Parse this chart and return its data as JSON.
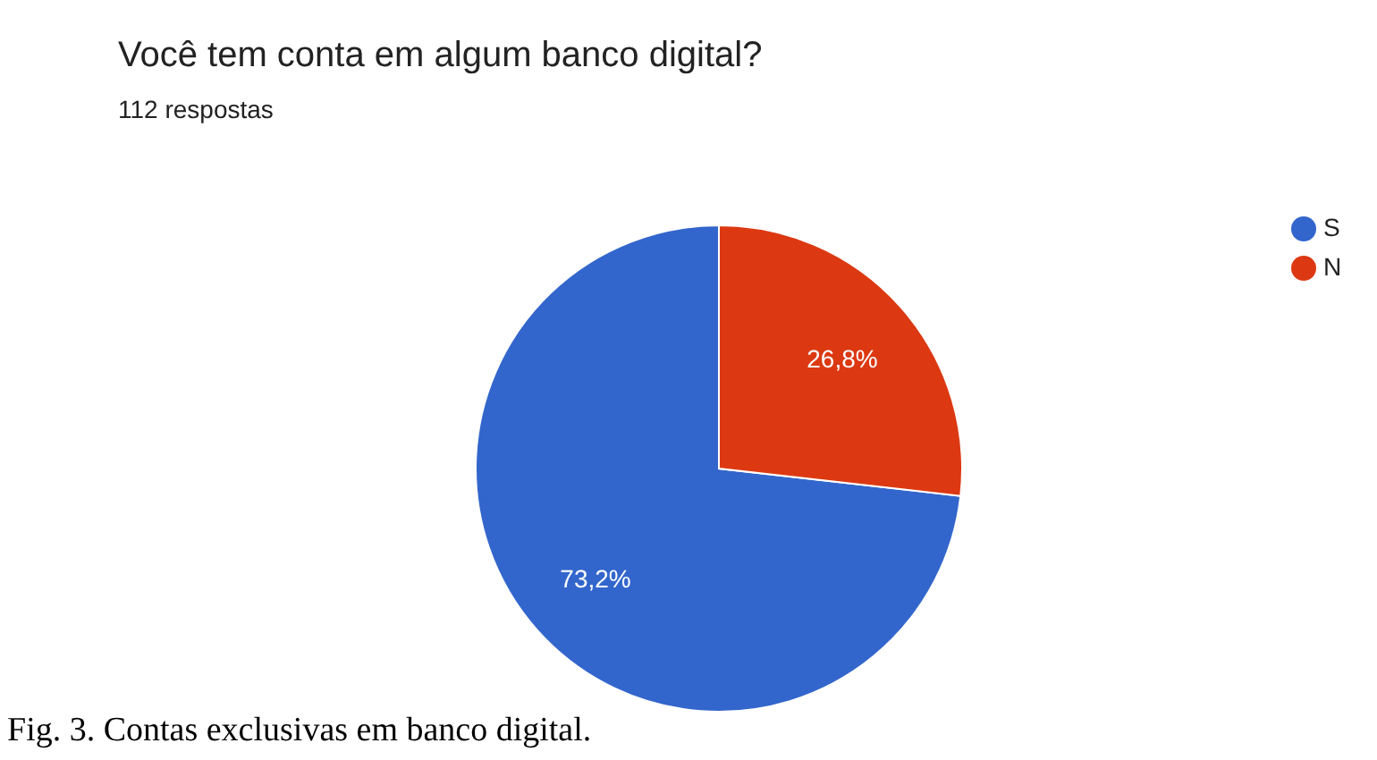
{
  "chart_data": {
    "type": "pie",
    "title": "Você tem conta em algum banco digital?",
    "subtitle": "112 respostas",
    "categories": [
      "S",
      "N"
    ],
    "values": [
      73.2,
      26.8
    ],
    "colors": [
      "#3366cc",
      "#dc3912"
    ],
    "value_labels": [
      "73,2%",
      "26,8%"
    ],
    "legend": "top right",
    "annotations": [
      "Fig. 3. Contas exclusivas em banco digital."
    ]
  }
}
